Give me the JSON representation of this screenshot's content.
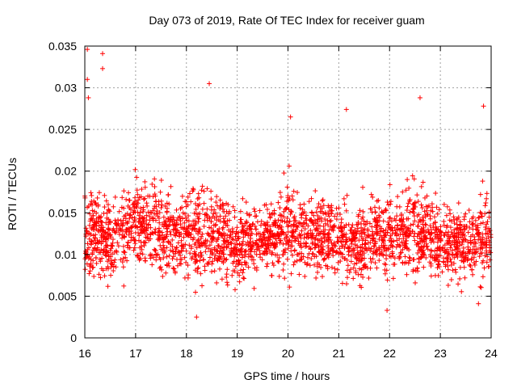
{
  "chart_data": {
    "type": "scatter",
    "title": "Day 073 of 2019, Rate Of TEC Index for receiver guam",
    "xlabel": "GPS time / hours",
    "ylabel": "ROTI / TECUs",
    "xlim": [
      16,
      24
    ],
    "ylim": [
      0,
      0.035
    ],
    "x_ticks": [
      16,
      17,
      18,
      19,
      20,
      21,
      22,
      23,
      24
    ],
    "x_tick_labels": [
      "16",
      "17",
      "18",
      "19",
      "20",
      "21",
      "22",
      "23",
      "24"
    ],
    "y_ticks": [
      0,
      0.005,
      0.01,
      0.015,
      0.02,
      0.025,
      0.03,
      0.035
    ],
    "y_tick_labels": [
      "0",
      "0.005",
      "0.01",
      "0.015",
      "0.02",
      "0.025",
      "0.03",
      "0.035"
    ],
    "grid": true,
    "marker": "+",
    "color": "#ff0000",
    "series": [
      {
        "name": "ROTI",
        "density_profile": {
          "x_hours": [
            16.0,
            16.5,
            17.0,
            17.5,
            18.0,
            18.5,
            19.0,
            19.5,
            20.0,
            20.5,
            21.0,
            21.5,
            22.0,
            22.5,
            23.0,
            23.5,
            24.0
          ],
          "median": [
            0.0125,
            0.012,
            0.0135,
            0.013,
            0.0125,
            0.0125,
            0.011,
            0.0115,
            0.013,
            0.0125,
            0.012,
            0.0115,
            0.0125,
            0.013,
            0.0115,
            0.0115,
            0.0125
          ],
          "spread": [
            0.0045,
            0.0045,
            0.0045,
            0.0045,
            0.005,
            0.005,
            0.004,
            0.0035,
            0.0045,
            0.004,
            0.004,
            0.0045,
            0.0045,
            0.0045,
            0.004,
            0.004,
            0.0045
          ]
        },
        "notable_points": [
          {
            "x": 16.05,
            "y": 0.0346
          },
          {
            "x": 16.35,
            "y": 0.0341
          },
          {
            "x": 16.35,
            "y": 0.0323
          },
          {
            "x": 16.05,
            "y": 0.031
          },
          {
            "x": 16.07,
            "y": 0.0288
          },
          {
            "x": 18.45,
            "y": 0.0305
          },
          {
            "x": 18.2,
            "y": 0.0025
          },
          {
            "x": 21.95,
            "y": 0.0033
          },
          {
            "x": 22.6,
            "y": 0.0288
          },
          {
            "x": 23.85,
            "y": 0.0278
          },
          {
            "x": 23.75,
            "y": 0.0041
          },
          {
            "x": 20.05,
            "y": 0.0265
          },
          {
            "x": 21.15,
            "y": 0.0274
          }
        ]
      }
    ]
  }
}
